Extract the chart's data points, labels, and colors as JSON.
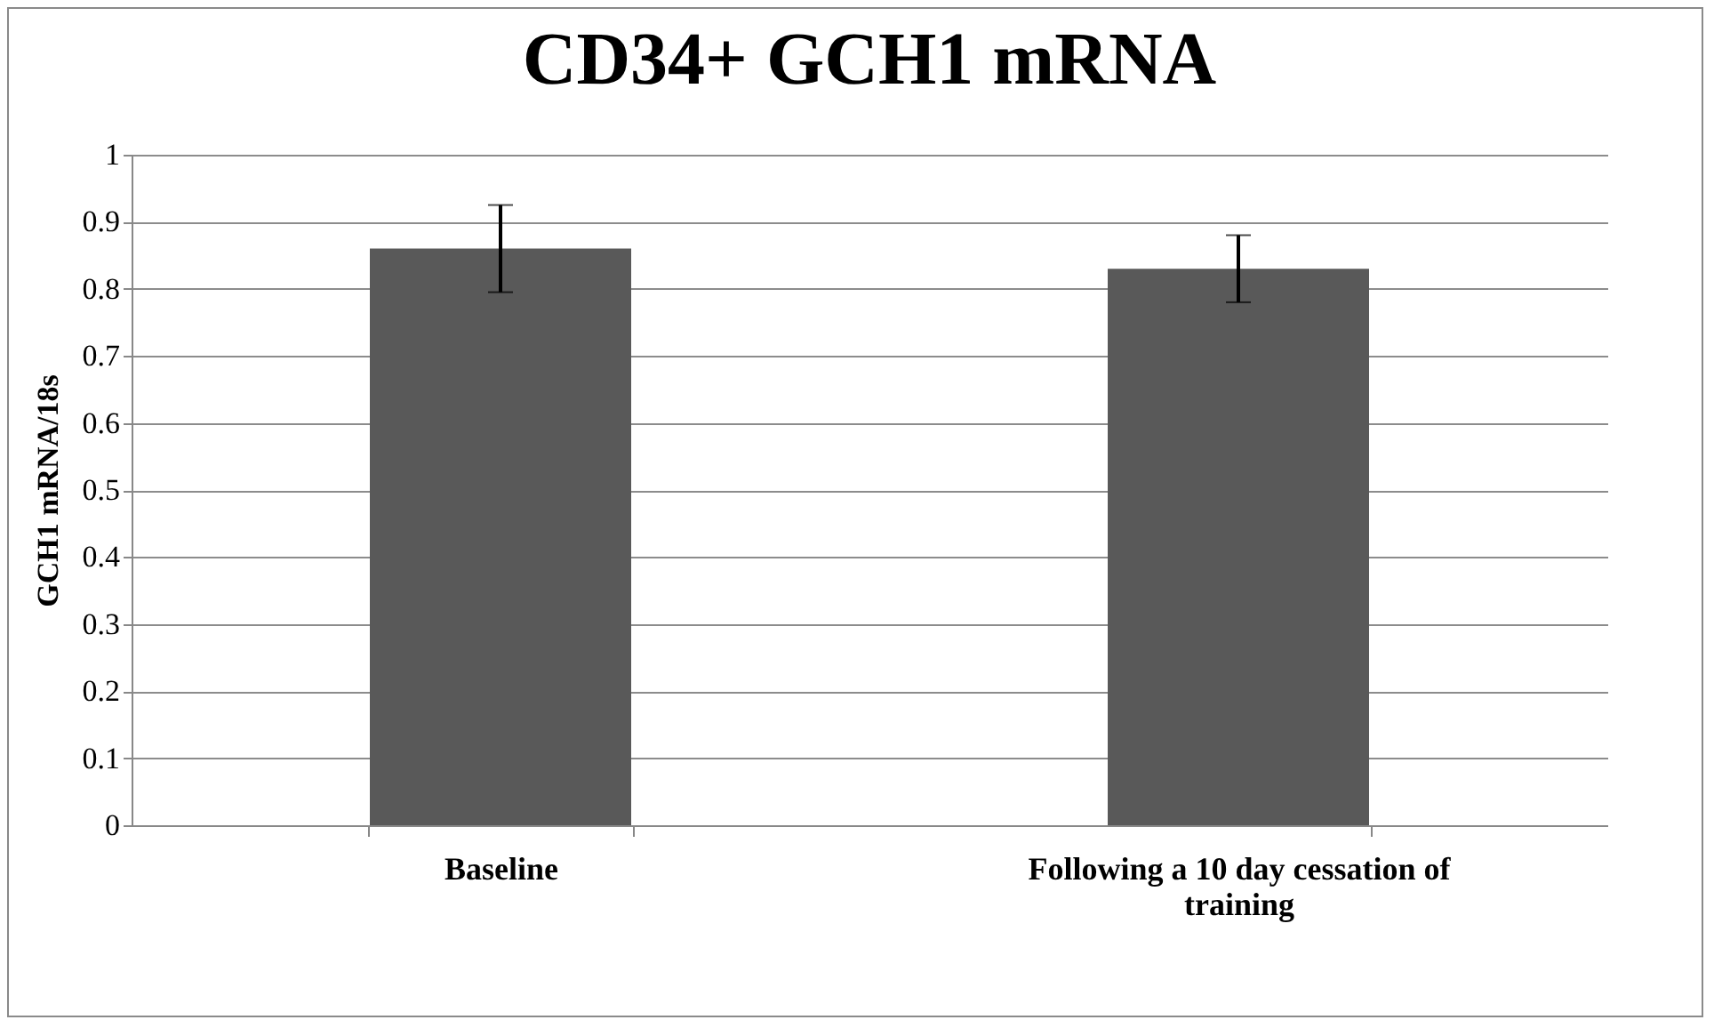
{
  "chart_data": {
    "type": "bar",
    "title": "CD34+ GCH1 mRNA",
    "ylabel": "GCH1 mRNA/18s",
    "categories": [
      "Baseline",
      "Following a 10 day cessation of training"
    ],
    "values": [
      0.86,
      0.83
    ],
    "errors": [
      0.065,
      0.05
    ],
    "color": "#595959",
    "ylim": [
      0,
      1
    ],
    "yticks": [
      0,
      0.1,
      0.2,
      0.3,
      0.4,
      0.5,
      0.6,
      0.7,
      0.8,
      0.9,
      1
    ],
    "grid": "y"
  }
}
